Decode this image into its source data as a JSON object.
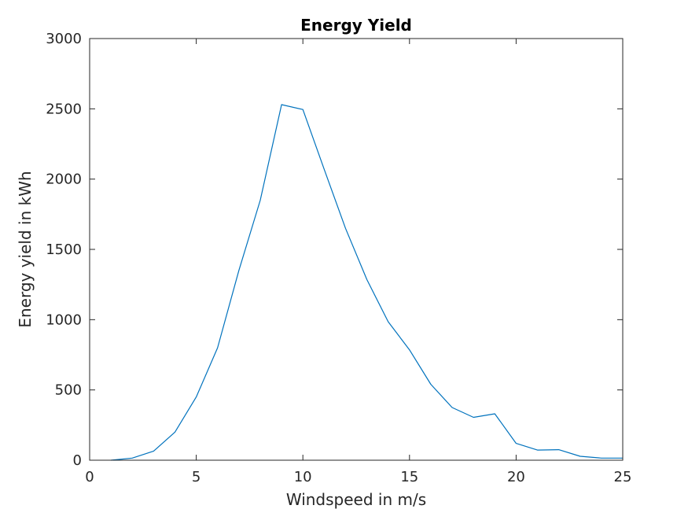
{
  "chart_data": {
    "type": "line",
    "title": "Energy Yield",
    "xlabel": "Windspeed in m/s",
    "ylabel": "Energy yield in kWh",
    "xlim": [
      0,
      25
    ],
    "ylim": [
      0,
      3000
    ],
    "xticks": [
      0,
      5,
      10,
      15,
      20,
      25
    ],
    "yticks": [
      0,
      500,
      1000,
      1500,
      2000,
      2500,
      3000
    ],
    "grid": false,
    "series": [
      {
        "color": "#0072bd",
        "x": [
          1,
          2,
          3,
          4,
          5,
          6,
          7,
          8,
          9,
          10,
          11,
          12,
          13,
          14,
          15,
          16,
          17,
          18,
          19,
          20,
          21,
          22,
          23,
          24,
          25
        ],
        "y": [
          0,
          15,
          65,
          200,
          450,
          800,
          1350,
          1850,
          2530,
          2495,
          2070,
          1650,
          1285,
          985,
          785,
          540,
          375,
          305,
          330,
          120,
          72,
          75,
          28,
          15,
          15
        ]
      }
    ]
  }
}
